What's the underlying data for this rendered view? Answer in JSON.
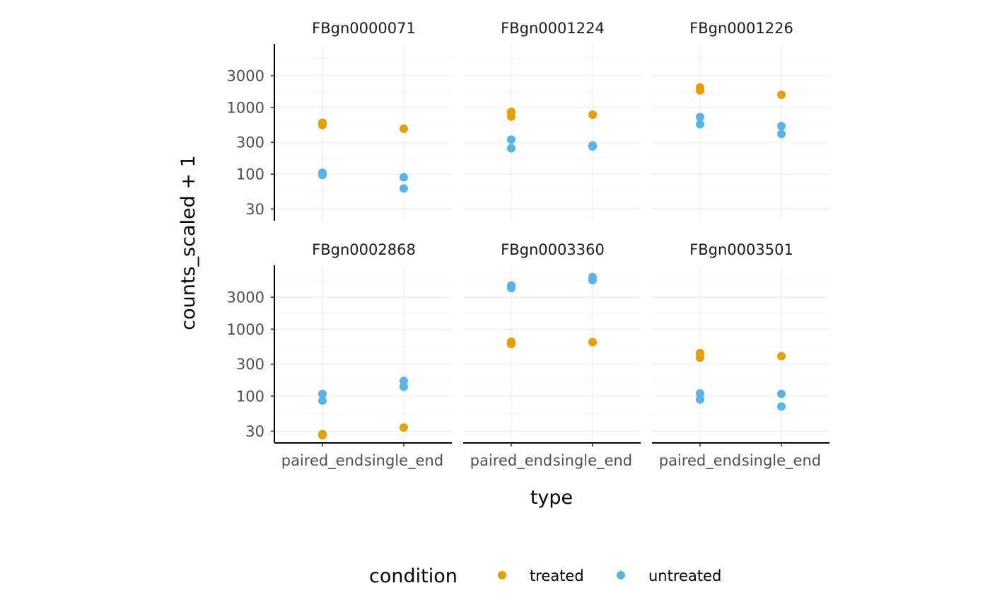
{
  "chart_data": {
    "type": "scatter",
    "facets": [
      "FBgn0000071",
      "FBgn0001224",
      "FBgn0001226",
      "FBgn0002868",
      "FBgn0003360",
      "FBgn0003501"
    ],
    "xlabel": "type",
    "ylabel": "counts_scaled + 1",
    "x_categories": [
      "paired_end",
      "single_end"
    ],
    "y_scale": "log10",
    "y_ticks": [
      30,
      100,
      300,
      1000,
      3000
    ],
    "y_tick_labels": [
      "30",
      "100",
      "300",
      "1000",
      "3000"
    ],
    "ylim": [
      20,
      9000
    ],
    "grid": true,
    "legend": {
      "title": "condition",
      "position": "bottom",
      "entries": [
        {
          "label": "treated",
          "color": "#E69F00"
        },
        {
          "label": "untreated",
          "color": "#56B4E9"
        }
      ]
    },
    "points": [
      {
        "facet": "FBgn0000071",
        "type": "paired_end",
        "condition": "treated",
        "y": 590
      },
      {
        "facet": "FBgn0000071",
        "type": "paired_end",
        "condition": "treated",
        "y": 545
      },
      {
        "facet": "FBgn0000071",
        "type": "single_end",
        "condition": "treated",
        "y": 480
      },
      {
        "facet": "FBgn0000071",
        "type": "paired_end",
        "condition": "untreated",
        "y": 105
      },
      {
        "facet": "FBgn0000071",
        "type": "paired_end",
        "condition": "untreated",
        "y": 97
      },
      {
        "facet": "FBgn0000071",
        "type": "single_end",
        "condition": "untreated",
        "y": 90
      },
      {
        "facet": "FBgn0000071",
        "type": "single_end",
        "condition": "untreated",
        "y": 61
      },
      {
        "facet": "FBgn0001224",
        "type": "paired_end",
        "condition": "treated",
        "y": 860
      },
      {
        "facet": "FBgn0001224",
        "type": "paired_end",
        "condition": "treated",
        "y": 730
      },
      {
        "facet": "FBgn0001224",
        "type": "single_end",
        "condition": "treated",
        "y": 780
      },
      {
        "facet": "FBgn0001224",
        "type": "paired_end",
        "condition": "untreated",
        "y": 330
      },
      {
        "facet": "FBgn0001224",
        "type": "paired_end",
        "condition": "untreated",
        "y": 245
      },
      {
        "facet": "FBgn0001224",
        "type": "single_end",
        "condition": "untreated",
        "y": 270
      },
      {
        "facet": "FBgn0001224",
        "type": "single_end",
        "condition": "untreated",
        "y": 260
      },
      {
        "facet": "FBgn0001226",
        "type": "paired_end",
        "condition": "treated",
        "y": 2000
      },
      {
        "facet": "FBgn0001226",
        "type": "paired_end",
        "condition": "treated",
        "y": 1800
      },
      {
        "facet": "FBgn0001226",
        "type": "single_end",
        "condition": "treated",
        "y": 1550
      },
      {
        "facet": "FBgn0001226",
        "type": "paired_end",
        "condition": "untreated",
        "y": 720
      },
      {
        "facet": "FBgn0001226",
        "type": "paired_end",
        "condition": "untreated",
        "y": 560
      },
      {
        "facet": "FBgn0001226",
        "type": "single_end",
        "condition": "untreated",
        "y": 525
      },
      {
        "facet": "FBgn0001226",
        "type": "single_end",
        "condition": "untreated",
        "y": 400
      },
      {
        "facet": "FBgn0002868",
        "type": "paired_end",
        "condition": "treated",
        "y": 27
      },
      {
        "facet": "FBgn0002868",
        "type": "paired_end",
        "condition": "treated",
        "y": 26
      },
      {
        "facet": "FBgn0002868",
        "type": "single_end",
        "condition": "treated",
        "y": 34
      },
      {
        "facet": "FBgn0002868",
        "type": "paired_end",
        "condition": "untreated",
        "y": 108
      },
      {
        "facet": "FBgn0002868",
        "type": "paired_end",
        "condition": "untreated",
        "y": 86
      },
      {
        "facet": "FBgn0002868",
        "type": "single_end",
        "condition": "untreated",
        "y": 168
      },
      {
        "facet": "FBgn0002868",
        "type": "single_end",
        "condition": "untreated",
        "y": 138
      },
      {
        "facet": "FBgn0003360",
        "type": "paired_end",
        "condition": "untreated",
        "y": 4500
      },
      {
        "facet": "FBgn0003360",
        "type": "paired_end",
        "condition": "untreated",
        "y": 4100
      },
      {
        "facet": "FBgn0003360",
        "type": "single_end",
        "condition": "untreated",
        "y": 6000
      },
      {
        "facet": "FBgn0003360",
        "type": "single_end",
        "condition": "untreated",
        "y": 5400
      },
      {
        "facet": "FBgn0003360",
        "type": "paired_end",
        "condition": "treated",
        "y": 650
      },
      {
        "facet": "FBgn0003360",
        "type": "paired_end",
        "condition": "treated",
        "y": 600
      },
      {
        "facet": "FBgn0003360",
        "type": "single_end",
        "condition": "treated",
        "y": 640
      },
      {
        "facet": "FBgn0003501",
        "type": "paired_end",
        "condition": "treated",
        "y": 440
      },
      {
        "facet": "FBgn0003501",
        "type": "paired_end",
        "condition": "treated",
        "y": 375
      },
      {
        "facet": "FBgn0003501",
        "type": "single_end",
        "condition": "treated",
        "y": 395
      },
      {
        "facet": "FBgn0003501",
        "type": "paired_end",
        "condition": "untreated",
        "y": 110
      },
      {
        "facet": "FBgn0003501",
        "type": "paired_end",
        "condition": "untreated",
        "y": 89
      },
      {
        "facet": "FBgn0003501",
        "type": "single_end",
        "condition": "untreated",
        "y": 108
      },
      {
        "facet": "FBgn0003501",
        "type": "single_end",
        "condition": "untreated",
        "y": 70
      }
    ]
  }
}
